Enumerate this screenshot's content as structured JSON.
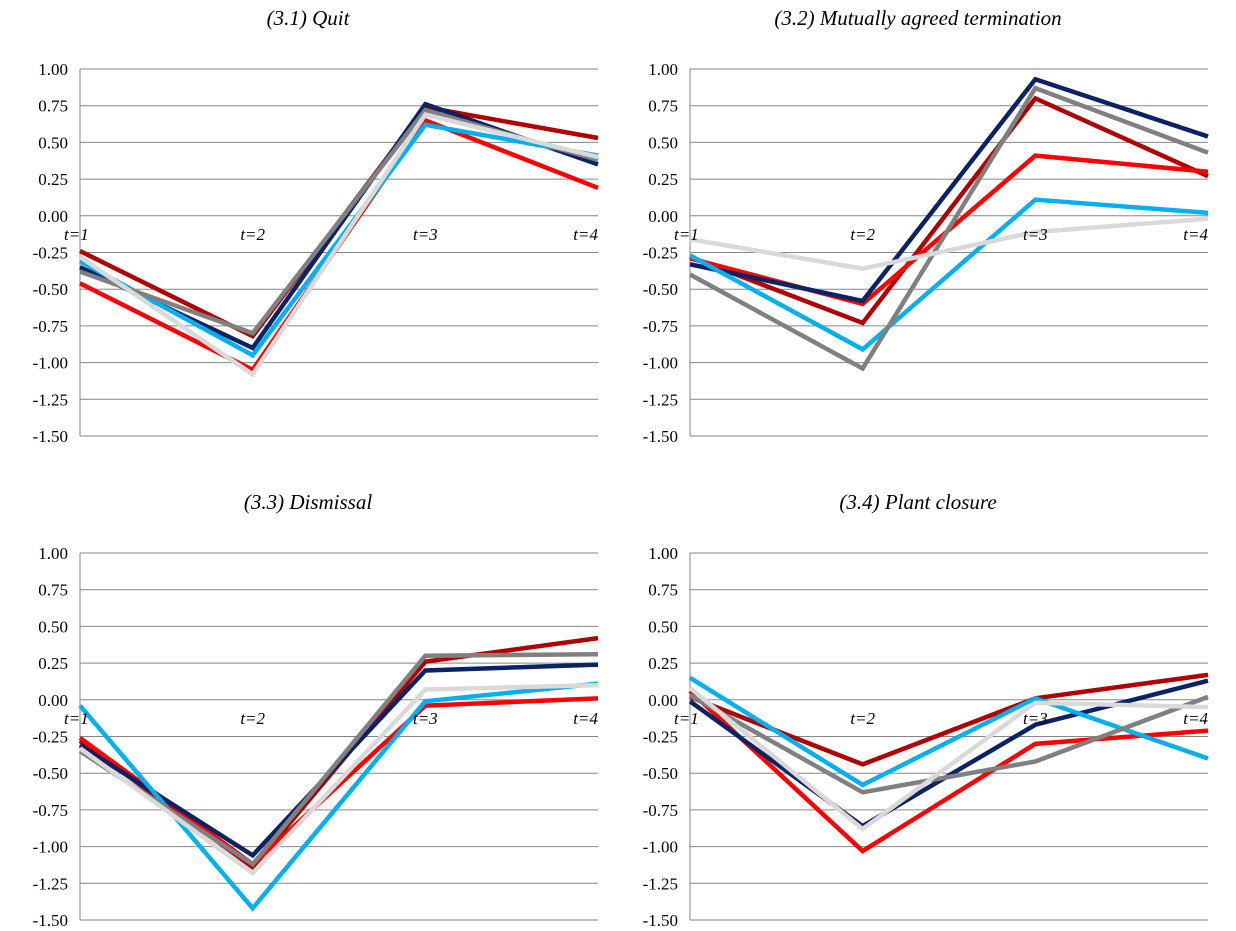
{
  "chart_data": [
    {
      "type": "line",
      "title": "(3.1) Quit",
      "categories": [
        "t=1",
        "t=2",
        "t=3",
        "t=4"
      ],
      "ylim": [
        -1.5,
        1.0
      ],
      "yticks": [
        "1.00",
        "0.75",
        "0.50",
        "0.25",
        "0.00",
        "-0.25",
        "-0.50",
        "-0.75",
        "-1.00",
        "-1.25",
        "-1.50"
      ],
      "grid": true,
      "legend": "none",
      "series": [
        {
          "color": "#b00000",
          "values": [
            -0.24,
            -0.82,
            0.74,
            0.53
          ]
        },
        {
          "color": "#ff0000",
          "values": [
            -0.46,
            -1.05,
            0.65,
            0.19
          ]
        },
        {
          "color": "#0b2265",
          "values": [
            -0.35,
            -0.9,
            0.76,
            0.35
          ]
        },
        {
          "color": "#00b0f0",
          "values": [
            -0.31,
            -0.95,
            0.62,
            0.41
          ]
        },
        {
          "color": "#808080",
          "values": [
            -0.38,
            -0.8,
            0.72,
            0.38
          ]
        },
        {
          "color": "#d9d9d9",
          "values": [
            -0.28,
            -1.08,
            0.69,
            0.4
          ]
        }
      ]
    },
    {
      "type": "line",
      "title": "(3.2) Mutually agreed termination",
      "categories": [
        "t=1",
        "t=2",
        "t=3",
        "t=4"
      ],
      "ylim": [
        -1.5,
        1.0
      ],
      "yticks": [
        "1.00",
        "0.75",
        "0.50",
        "0.25",
        "0.00",
        "-0.25",
        "-0.50",
        "-0.75",
        "-1.00",
        "-1.25",
        "-1.50"
      ],
      "grid": true,
      "legend": "none",
      "series": [
        {
          "color": "#b00000",
          "values": [
            -0.28,
            -0.73,
            0.8,
            0.27
          ]
        },
        {
          "color": "#ff0000",
          "values": [
            -0.29,
            -0.6,
            0.41,
            0.3
          ]
        },
        {
          "color": "#0b2265",
          "values": [
            -0.33,
            -0.58,
            0.93,
            0.54
          ]
        },
        {
          "color": "#00b0f0",
          "values": [
            -0.27,
            -0.91,
            0.11,
            0.02
          ]
        },
        {
          "color": "#808080",
          "values": [
            -0.4,
            -1.04,
            0.87,
            0.43
          ]
        },
        {
          "color": "#d9d9d9",
          "values": [
            -0.16,
            -0.36,
            -0.11,
            -0.02
          ]
        }
      ]
    },
    {
      "type": "line",
      "title": "(3.3) Dismissal",
      "categories": [
        "t=1",
        "t=2",
        "t=3",
        "t=4"
      ],
      "ylim": [
        -1.5,
        1.0
      ],
      "yticks": [
        "1.00",
        "0.75",
        "0.50",
        "0.25",
        "0.00",
        "-0.25",
        "-0.50",
        "-0.75",
        "-1.00",
        "-1.25",
        "-1.50"
      ],
      "grid": true,
      "legend": "none",
      "series": [
        {
          "color": "#b00000",
          "values": [
            -0.28,
            -1.14,
            0.26,
            0.42
          ]
        },
        {
          "color": "#ff0000",
          "values": [
            -0.26,
            -1.12,
            -0.04,
            0.01
          ]
        },
        {
          "color": "#0b2265",
          "values": [
            -0.31,
            -1.06,
            0.2,
            0.24
          ]
        },
        {
          "color": "#00b0f0",
          "values": [
            -0.04,
            -1.42,
            -0.01,
            0.11
          ]
        },
        {
          "color": "#808080",
          "values": [
            -0.35,
            -1.12,
            0.3,
            0.31
          ]
        },
        {
          "color": "#d9d9d9",
          "values": [
            -0.33,
            -1.18,
            0.07,
            0.1
          ]
        }
      ]
    },
    {
      "type": "line",
      "title": "(3.4) Plant closure",
      "categories": [
        "t=1",
        "t=2",
        "t=3",
        "t=4"
      ],
      "ylim": [
        -1.5,
        1.0
      ],
      "yticks": [
        "1.00",
        "0.75",
        "0.50",
        "0.25",
        "0.00",
        "-0.25",
        "-0.50",
        "-0.75",
        "-1.00",
        "-1.25",
        "-1.50"
      ],
      "grid": true,
      "legend": "none",
      "series": [
        {
          "color": "#b00000",
          "values": [
            0.02,
            -0.44,
            0.01,
            0.17
          ]
        },
        {
          "color": "#ff0000",
          "values": [
            0.06,
            -1.03,
            -0.3,
            -0.21
          ]
        },
        {
          "color": "#0b2265",
          "values": [
            -0.01,
            -0.86,
            -0.17,
            0.13
          ]
        },
        {
          "color": "#00b0f0",
          "values": [
            0.15,
            -0.58,
            0.01,
            -0.4
          ]
        },
        {
          "color": "#808080",
          "values": [
            0.03,
            -0.63,
            -0.42,
            0.02
          ]
        },
        {
          "color": "#d9d9d9",
          "values": [
            0.08,
            -0.88,
            -0.02,
            -0.05
          ]
        }
      ]
    }
  ]
}
